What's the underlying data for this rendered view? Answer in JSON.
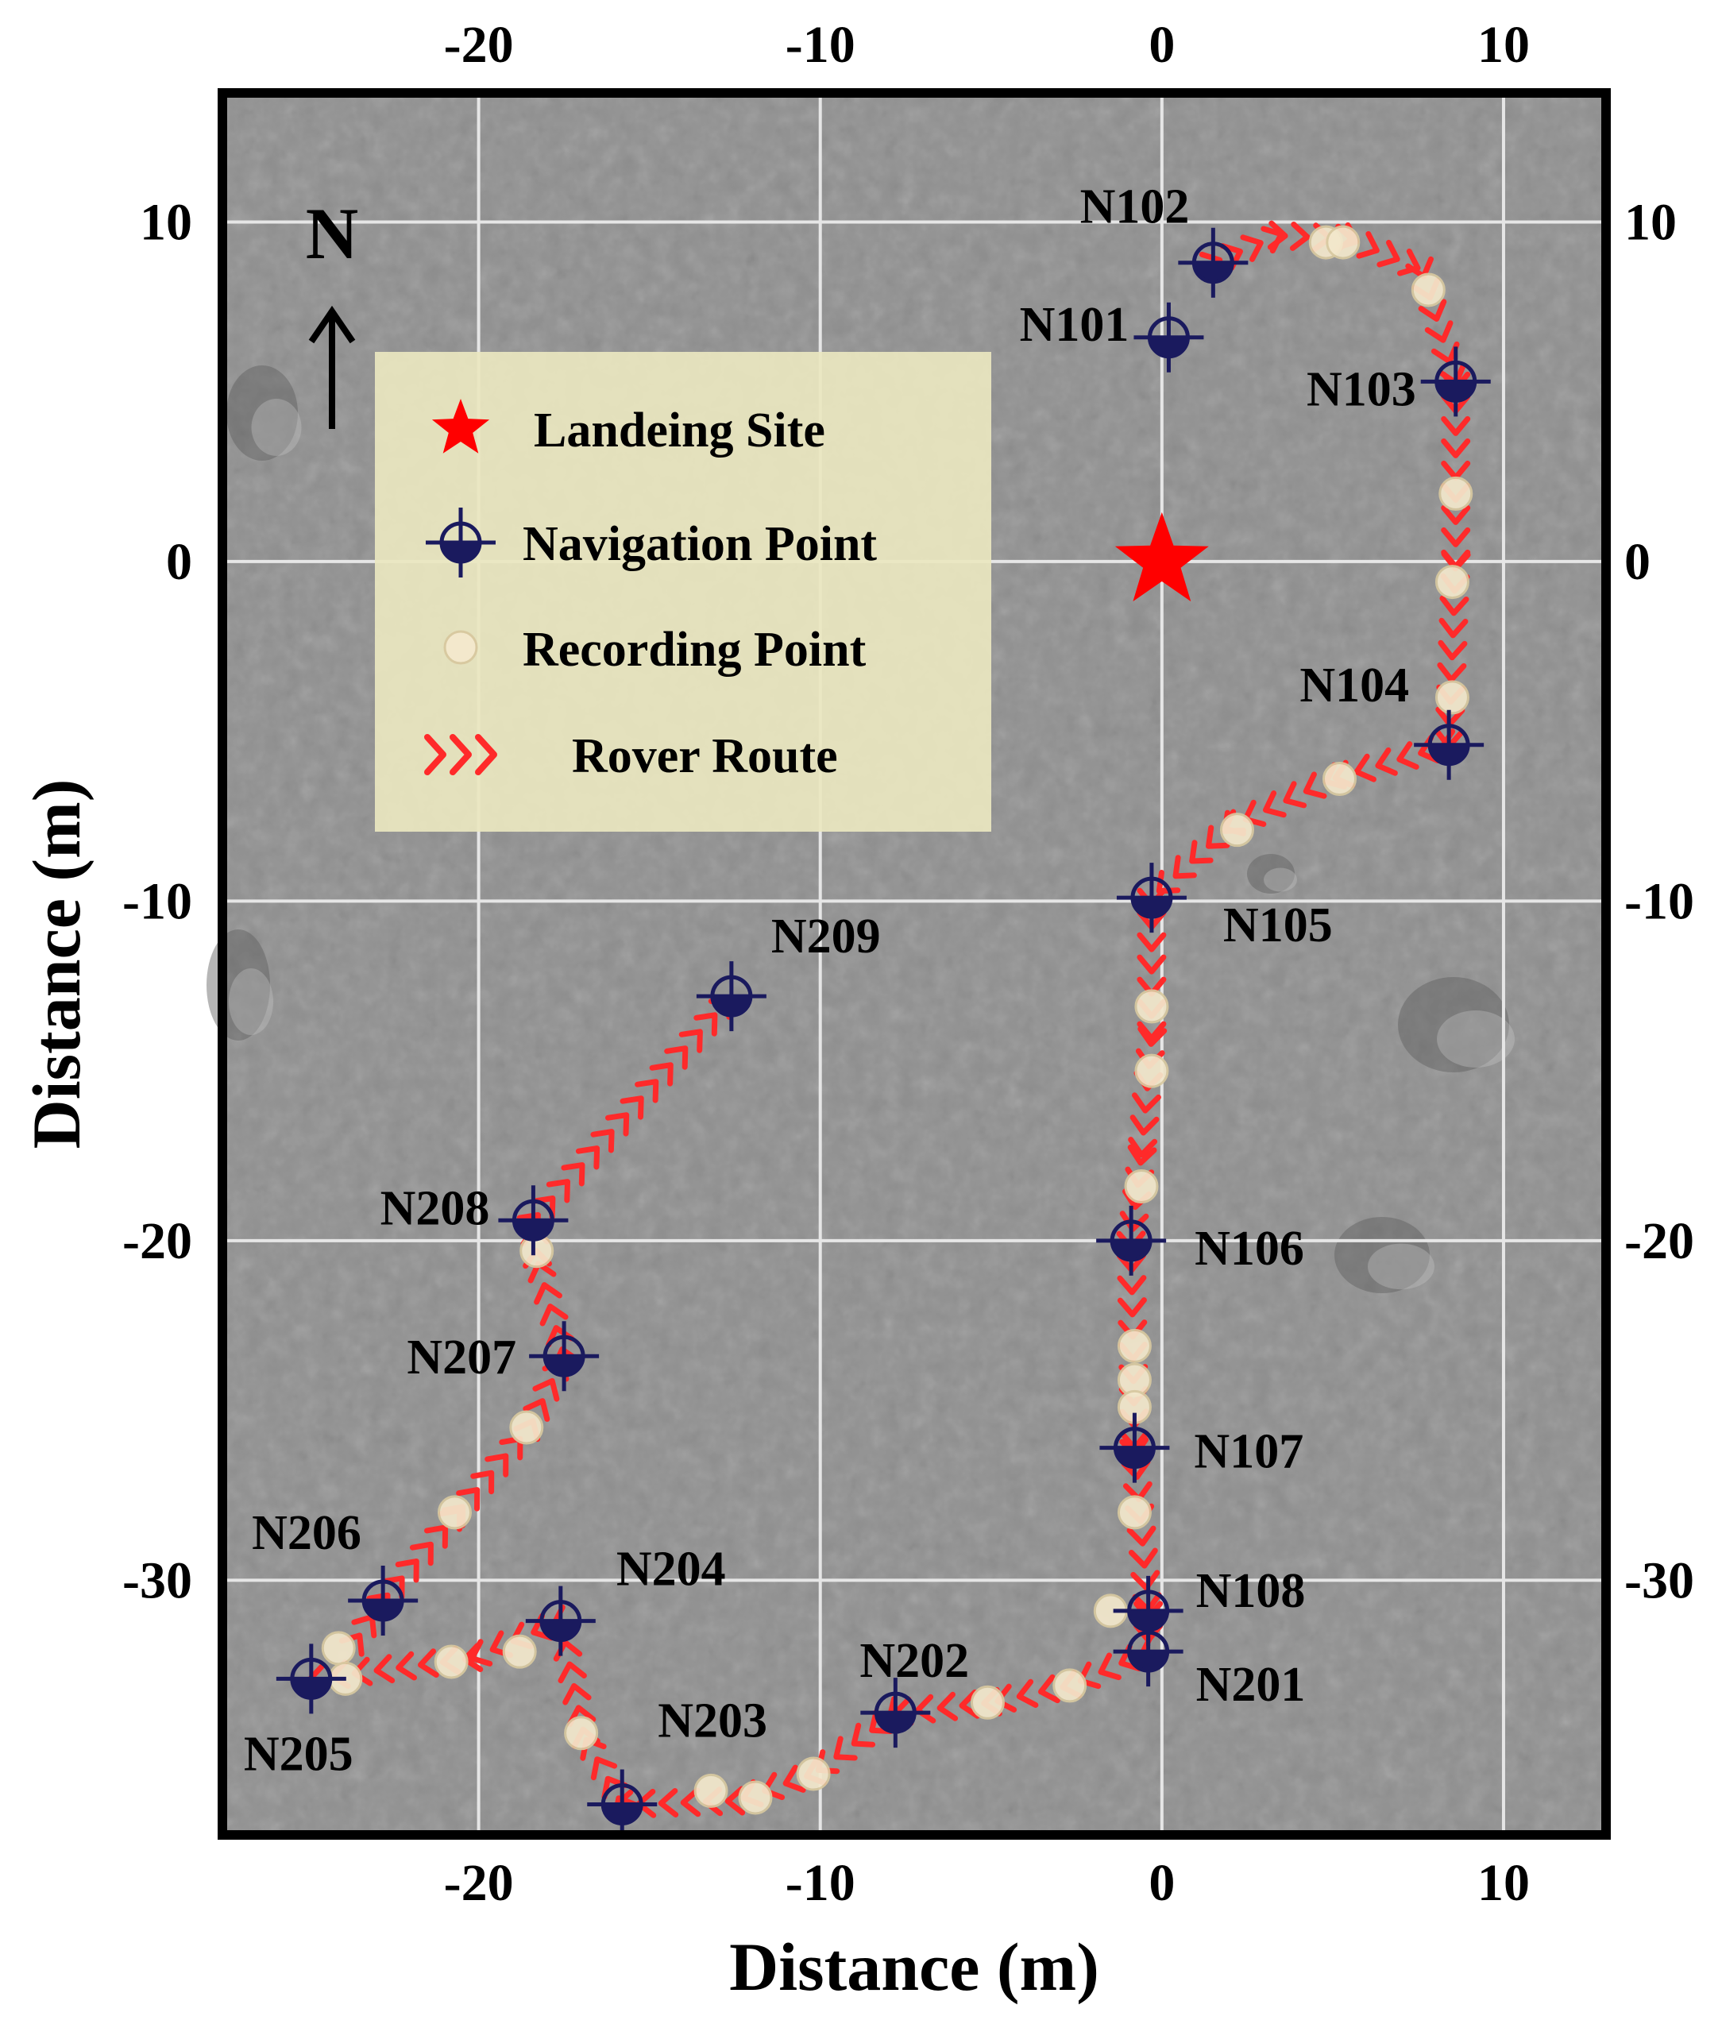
{
  "chart_data": {
    "type": "scatter",
    "title": "",
    "xlabel": "Distance (m)",
    "ylabel": "Distance (m)",
    "xlim": [
      -27.5,
      13
    ],
    "ylim": [
      -37.5,
      13.8
    ],
    "xticks": [
      -20,
      -10,
      0,
      10
    ],
    "yticks": [
      10,
      0,
      -10,
      -20,
      -30
    ],
    "grid": true,
    "north_arrow": "N",
    "legend": {
      "placement": "top-left",
      "entries": [
        {
          "key": "landing",
          "label": "Landeing Site"
        },
        {
          "key": "nav",
          "label": "Navigation Point"
        },
        {
          "key": "rec",
          "label": "Recording Point"
        },
        {
          "key": "route",
          "label": "Rover Route"
        }
      ]
    },
    "colors": {
      "route": "#ff2a2a",
      "landing": "#ff0000",
      "nav_marker": "#1a1a5e",
      "recording_point": "#f3e8cc",
      "grid": "#e6e6e6",
      "legend_bg": "#e9e6c0",
      "terrain": "#8f8f8f"
    },
    "landing_site": {
      "x": 0,
      "y": 0
    },
    "navigation_points": [
      {
        "label": "N101",
        "x": 0.2,
        "y": 6.6
      },
      {
        "label": "N102",
        "x": 1.5,
        "y": 8.8
      },
      {
        "label": "N103",
        "x": 8.6,
        "y": 5.3
      },
      {
        "label": "N104",
        "x": 8.4,
        "y": -5.4
      },
      {
        "label": "N105",
        "x": -0.3,
        "y": -9.9
      },
      {
        "label": "N106",
        "x": -0.9,
        "y": -20.0
      },
      {
        "label": "N107",
        "x": -0.8,
        "y": -26.1
      },
      {
        "label": "N108",
        "x": -0.4,
        "y": -30.9
      },
      {
        "label": "N201",
        "x": -0.4,
        "y": -32.1
      },
      {
        "label": "N202",
        "x": -7.8,
        "y": -33.9
      },
      {
        "label": "N203",
        "x": -15.8,
        "y": -36.6
      },
      {
        "label": "N204",
        "x": -17.6,
        "y": -31.2
      },
      {
        "label": "N205",
        "x": -24.9,
        "y": -32.9
      },
      {
        "label": "N206",
        "x": -22.8,
        "y": -30.6
      },
      {
        "label": "N207",
        "x": -17.5,
        "y": -23.4
      },
      {
        "label": "N208",
        "x": -18.4,
        "y": -19.4
      },
      {
        "label": "N209",
        "x": -12.6,
        "y": -12.8
      }
    ],
    "recording_points": [
      {
        "x": 4.8,
        "y": 9.4
      },
      {
        "x": 5.3,
        "y": 9.4
      },
      {
        "x": 7.8,
        "y": 8.0
      },
      {
        "x": 8.6,
        "y": 2.0
      },
      {
        "x": 8.5,
        "y": -0.6
      },
      {
        "x": 8.5,
        "y": -4.0
      },
      {
        "x": 5.2,
        "y": -6.4
      },
      {
        "x": 2.2,
        "y": -7.9
      },
      {
        "x": -0.3,
        "y": -13.1
      },
      {
        "x": -0.3,
        "y": -15.0
      },
      {
        "x": -0.6,
        "y": -18.4
      },
      {
        "x": -0.8,
        "y": -23.1
      },
      {
        "x": -0.8,
        "y": -24.1
      },
      {
        "x": -0.8,
        "y": -24.9
      },
      {
        "x": -0.8,
        "y": -28.0
      },
      {
        "x": -1.5,
        "y": -30.9
      },
      {
        "x": -2.7,
        "y": -33.1
      },
      {
        "x": -5.1,
        "y": -33.6
      },
      {
        "x": -10.2,
        "y": -35.7
      },
      {
        "x": -11.9,
        "y": -36.4
      },
      {
        "x": -13.2,
        "y": -36.2
      },
      {
        "x": -17.0,
        "y": -34.5
      },
      {
        "x": -18.8,
        "y": -32.1
      },
      {
        "x": -20.8,
        "y": -32.4
      },
      {
        "x": -24.1,
        "y": -32.0
      },
      {
        "x": -23.9,
        "y": -32.9
      },
      {
        "x": -20.7,
        "y": -28.0
      },
      {
        "x": -18.6,
        "y": -25.5
      },
      {
        "x": -18.3,
        "y": -20.3
      }
    ],
    "routes": [
      [
        [
          1.5,
          8.8
        ],
        [
          3.4,
          9.6
        ],
        [
          5.5,
          9.5
        ],
        [
          7.6,
          8.6
        ],
        [
          8.6,
          5.3
        ],
        [
          8.6,
          0.0
        ],
        [
          8.4,
          -5.4
        ],
        [
          5.0,
          -6.4
        ],
        [
          2.0,
          -7.8
        ],
        [
          -0.3,
          -9.9
        ],
        [
          -0.3,
          -14.0
        ],
        [
          -0.6,
          -17.5
        ],
        [
          -0.9,
          -20.0
        ],
        [
          -0.8,
          -26.1
        ],
        [
          -0.4,
          -30.9
        ],
        [
          -0.4,
          -32.1
        ],
        [
          -2.7,
          -33.1
        ],
        [
          -5.0,
          -33.6
        ],
        [
          -7.8,
          -33.9
        ],
        [
          -10.2,
          -35.7
        ],
        [
          -12.5,
          -36.5
        ],
        [
          -15.8,
          -36.6
        ],
        [
          -16.9,
          -34.6
        ],
        [
          -17.6,
          -31.2
        ],
        [
          -20.2,
          -32.3
        ],
        [
          -24.9,
          -32.9
        ]
      ],
      [
        [
          -23.6,
          -31.8
        ],
        [
          -22.8,
          -30.6
        ],
        [
          -20.6,
          -28.0
        ],
        [
          -18.5,
          -25.5
        ],
        [
          -17.5,
          -23.4
        ],
        [
          -18.3,
          -20.5
        ],
        [
          -18.4,
          -19.4
        ],
        [
          -12.6,
          -12.8
        ]
      ]
    ]
  }
}
